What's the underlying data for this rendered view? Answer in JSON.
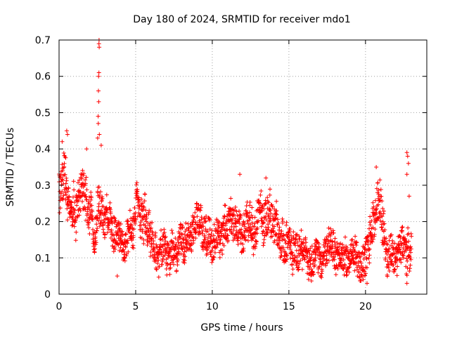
{
  "chart_data": {
    "type": "scatter",
    "title": "Day 180 of 2024, SRMTID for receiver mdo1",
    "xlabel": "GPS time / hours",
    "ylabel": "SRMTID / TECUs",
    "xlim": [
      0,
      24
    ],
    "ylim": [
      0,
      0.7
    ],
    "xticks": [
      0,
      5,
      10,
      15,
      20
    ],
    "yticks": [
      0,
      0.1,
      0.2,
      0.3,
      0.4,
      0.5,
      0.6,
      0.7
    ],
    "xtick_labels": [
      "0",
      "5",
      "10",
      "15",
      "20"
    ],
    "ytick_labels": [
      "0",
      "0.1",
      "0.2",
      "0.3",
      "0.4",
      "0.5",
      "0.6",
      "0.7"
    ],
    "grid": true,
    "marker": "+",
    "color": "#ff0000",
    "points_per_hour": 90,
    "x_end": 23,
    "trend": [
      [
        0.0,
        0.29
      ],
      [
        0.3,
        0.32
      ],
      [
        0.6,
        0.27
      ],
      [
        1.0,
        0.25
      ],
      [
        1.5,
        0.27
      ],
      [
        2.0,
        0.24
      ],
      [
        2.3,
        0.21
      ],
      [
        2.5,
        0.25
      ],
      [
        2.7,
        0.26
      ],
      [
        3.0,
        0.2
      ],
      [
        3.5,
        0.16
      ],
      [
        4.0,
        0.14
      ],
      [
        4.5,
        0.15
      ],
      [
        5.0,
        0.22
      ],
      [
        5.5,
        0.18
      ],
      [
        6.0,
        0.15
      ],
      [
        6.5,
        0.13
      ],
      [
        7.0,
        0.11
      ],
      [
        7.5,
        0.12
      ],
      [
        8.0,
        0.15
      ],
      [
        8.5,
        0.17
      ],
      [
        9.0,
        0.19
      ],
      [
        9.5,
        0.17
      ],
      [
        10.0,
        0.16
      ],
      [
        10.5,
        0.16
      ],
      [
        11.0,
        0.2
      ],
      [
        11.5,
        0.22
      ],
      [
        12.0,
        0.2
      ],
      [
        12.5,
        0.19
      ],
      [
        13.0,
        0.17
      ],
      [
        13.5,
        0.2
      ],
      [
        14.0,
        0.16
      ],
      [
        14.5,
        0.15
      ],
      [
        15.0,
        0.15
      ],
      [
        15.5,
        0.13
      ],
      [
        16.0,
        0.12
      ],
      [
        16.5,
        0.11
      ],
      [
        17.0,
        0.1
      ],
      [
        17.5,
        0.12
      ],
      [
        18.0,
        0.12
      ],
      [
        18.5,
        0.1
      ],
      [
        19.0,
        0.09
      ],
      [
        19.5,
        0.1
      ],
      [
        20.0,
        0.1
      ],
      [
        20.5,
        0.18
      ],
      [
        20.8,
        0.26
      ],
      [
        21.0,
        0.22
      ],
      [
        21.5,
        0.13
      ],
      [
        22.0,
        0.11
      ],
      [
        22.5,
        0.12
      ],
      [
        23.0,
        0.1
      ]
    ],
    "spread": [
      [
        0.0,
        0.08
      ],
      [
        1.0,
        0.07
      ],
      [
        2.0,
        0.07
      ],
      [
        3.0,
        0.06
      ],
      [
        4.0,
        0.05
      ],
      [
        5.0,
        0.06
      ],
      [
        8.0,
        0.05
      ],
      [
        11.0,
        0.06
      ],
      [
        13.5,
        0.07
      ],
      [
        16.0,
        0.05
      ],
      [
        19.0,
        0.05
      ],
      [
        20.8,
        0.07
      ],
      [
        22.0,
        0.05
      ],
      [
        23.0,
        0.06
      ]
    ],
    "spikes": [
      {
        "x": 2.6,
        "y": 0.69
      },
      {
        "x": 2.61,
        "y": 0.7
      },
      {
        "x": 2.62,
        "y": 0.68
      },
      {
        "x": 2.6,
        "y": 0.61
      },
      {
        "x": 2.58,
        "y": 0.6
      },
      {
        "x": 2.57,
        "y": 0.56
      },
      {
        "x": 2.59,
        "y": 0.53
      },
      {
        "x": 2.55,
        "y": 0.49
      },
      {
        "x": 2.56,
        "y": 0.47
      },
      {
        "x": 2.63,
        "y": 0.44
      },
      {
        "x": 2.52,
        "y": 0.43
      },
      {
        "x": 2.75,
        "y": 0.41
      },
      {
        "x": 0.5,
        "y": 0.45
      },
      {
        "x": 0.55,
        "y": 0.44
      },
      {
        "x": 1.8,
        "y": 0.4
      },
      {
        "x": 0.2,
        "y": 0.42
      },
      {
        "x": 11.8,
        "y": 0.33
      },
      {
        "x": 13.5,
        "y": 0.32
      },
      {
        "x": 20.7,
        "y": 0.35
      },
      {
        "x": 22.7,
        "y": 0.39
      },
      {
        "x": 22.75,
        "y": 0.38
      },
      {
        "x": 22.8,
        "y": 0.36
      },
      {
        "x": 22.7,
        "y": 0.33
      },
      {
        "x": 22.85,
        "y": 0.27
      },
      {
        "x": 22.7,
        "y": 0.03
      },
      {
        "x": 20.1,
        "y": 0.03
      },
      {
        "x": 3.8,
        "y": 0.05
      }
    ]
  }
}
